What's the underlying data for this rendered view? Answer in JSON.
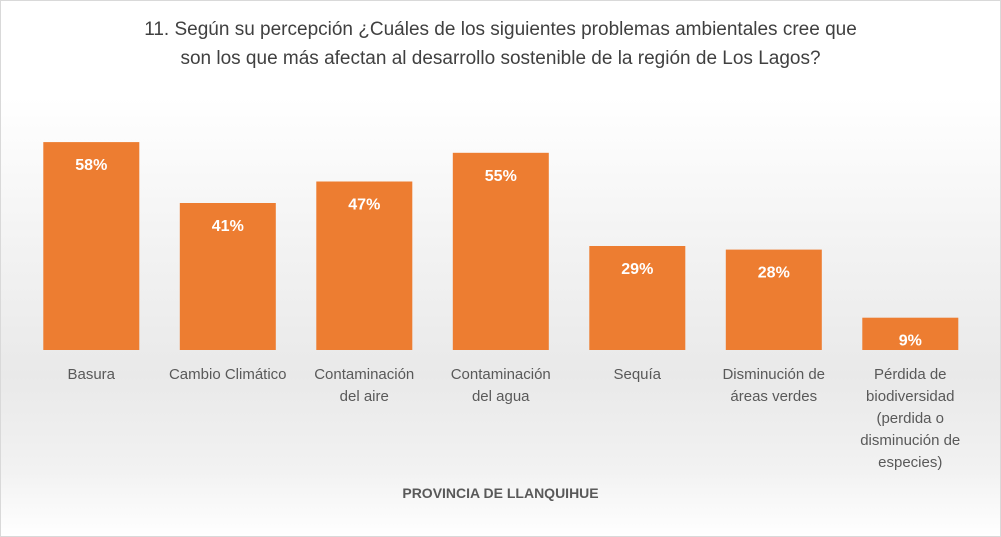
{
  "chart_data": {
    "type": "bar",
    "title": [
      "11. Según su percepción ¿Cuáles de los siguientes problemas ambientales cree que",
      "son los que más afectan al desarrollo sostenible de la región de Los Lagos?"
    ],
    "xlabel": "PROVINCIA DE LLANQUIHUE",
    "ylabel": "",
    "categories": [
      [
        "Basura"
      ],
      [
        "Cambio Climático"
      ],
      [
        "Contaminación",
        "del aire"
      ],
      [
        "Contaminación",
        "del agua"
      ],
      [
        "Sequía"
      ],
      [
        "Disminución de",
        "áreas verdes"
      ],
      [
        "Pérdida de",
        "biodiversidad",
        "(perdida o",
        "disminución de",
        "especies)"
      ]
    ],
    "values": [
      58,
      41,
      47,
      55,
      29,
      28,
      9
    ],
    "value_labels": [
      "58%",
      "41%",
      "47%",
      "55%",
      "29%",
      "28%",
      "9%"
    ],
    "ylim": [
      0,
      100
    ],
    "grid": false,
    "legend": "none",
    "colors": {
      "bar": "#ED7D31",
      "bar_label": "#FFFFFF",
      "text": "#595959",
      "title": "#404040"
    }
  }
}
